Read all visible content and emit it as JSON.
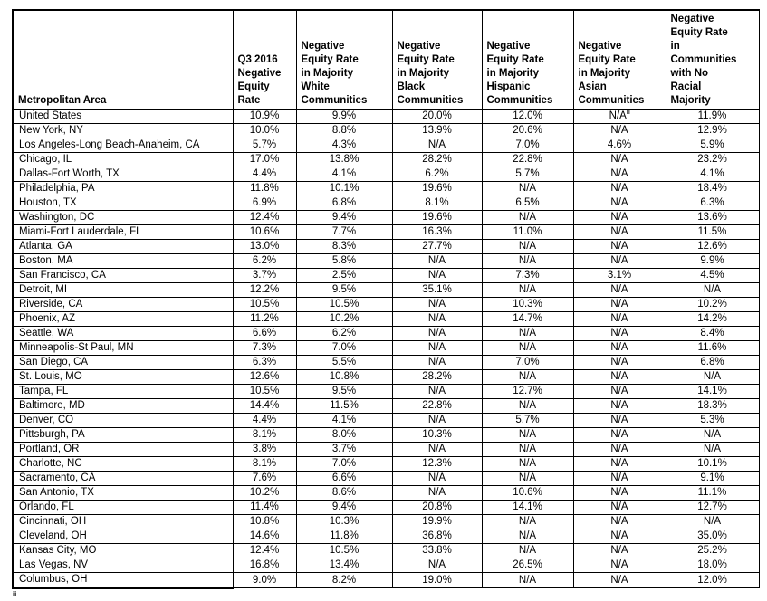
{
  "colors": {
    "background": "#ffffff",
    "text": "#000000",
    "border": "#000000"
  },
  "table": {
    "columns": [
      "Metropolitan Area",
      "Q3 2016\nNegative\nEquity\nRate",
      "Negative\nEquity Rate\nin Majority\nWhite\nCommunities",
      "Negative\nEquity Rate\nin Majority\nBlack\nCommunities",
      "Negative\nEquity Rate\nin Majority\nHispanic\nCommunities",
      "Negative\nEquity Rate\nin Majority\nAsian\nCommunities",
      "Negative\nEquity Rate\nin\nCommunities\nwith No\nRacial\nMajority"
    ],
    "rows": [
      [
        "United States",
        "10.9%",
        "9.9%",
        "20.0%",
        "12.0%",
        {
          "text": "N/A",
          "sup": "iii"
        },
        "11.9%"
      ],
      [
        "New York, NY",
        "10.0%",
        "8.8%",
        "13.9%",
        "20.6%",
        "N/A",
        "12.9%"
      ],
      [
        "Los Angeles-Long Beach-Anaheim, CA",
        "5.7%",
        "4.3%",
        "N/A",
        "7.0%",
        "4.6%",
        "5.9%"
      ],
      [
        "Chicago, IL",
        "17.0%",
        "13.8%",
        "28.2%",
        "22.8%",
        "N/A",
        "23.2%"
      ],
      [
        "Dallas-Fort Worth, TX",
        "4.4%",
        "4.1%",
        "6.2%",
        "5.7%",
        "N/A",
        "4.1%"
      ],
      [
        "Philadelphia, PA",
        "11.8%",
        "10.1%",
        "19.6%",
        "N/A",
        "N/A",
        "18.4%"
      ],
      [
        "Houston, TX",
        "6.9%",
        "6.8%",
        "8.1%",
        "6.5%",
        "N/A",
        "6.3%"
      ],
      [
        "Washington, DC",
        "12.4%",
        "9.4%",
        "19.6%",
        "N/A",
        "N/A",
        "13.6%"
      ],
      [
        "Miami-Fort Lauderdale, FL",
        "10.6%",
        "7.7%",
        "16.3%",
        "11.0%",
        "N/A",
        "11.5%"
      ],
      [
        "Atlanta, GA",
        "13.0%",
        "8.3%",
        "27.7%",
        "N/A",
        "N/A",
        "12.6%"
      ],
      [
        "Boston, MA",
        "6.2%",
        "5.8%",
        "N/A",
        "N/A",
        "N/A",
        "9.9%"
      ],
      [
        "San Francisco, CA",
        "3.7%",
        "2.5%",
        "N/A",
        "7.3%",
        "3.1%",
        "4.5%"
      ],
      [
        "Detroit, MI",
        "12.2%",
        "9.5%",
        "35.1%",
        "N/A",
        "N/A",
        "N/A"
      ],
      [
        "Riverside, CA",
        "10.5%",
        "10.5%",
        "N/A",
        "10.3%",
        "N/A",
        "10.2%"
      ],
      [
        "Phoenix, AZ",
        "11.2%",
        "10.2%",
        "N/A",
        "14.7%",
        "N/A",
        "14.2%"
      ],
      [
        "Seattle, WA",
        "6.6%",
        "6.2%",
        "N/A",
        "N/A",
        "N/A",
        "8.4%"
      ],
      [
        "Minneapolis-St Paul, MN",
        "7.3%",
        "7.0%",
        "N/A",
        "N/A",
        "N/A",
        "11.6%"
      ],
      [
        "San Diego, CA",
        "6.3%",
        "5.5%",
        "N/A",
        "7.0%",
        "N/A",
        "6.8%"
      ],
      [
        "St. Louis, MO",
        "12.6%",
        "10.8%",
        "28.2%",
        "N/A",
        "N/A",
        "N/A"
      ],
      [
        "Tampa, FL",
        "10.5%",
        "9.5%",
        "N/A",
        "12.7%",
        "N/A",
        "14.1%"
      ],
      [
        "Baltimore, MD",
        "14.4%",
        "11.5%",
        "22.8%",
        "N/A",
        "N/A",
        "18.3%"
      ],
      [
        "Denver, CO",
        "4.4%",
        "4.1%",
        "N/A",
        "5.7%",
        "N/A",
        "5.3%"
      ],
      [
        "Pittsburgh, PA",
        "8.1%",
        "8.0%",
        "10.3%",
        "N/A",
        "N/A",
        "N/A"
      ],
      [
        "Portland, OR",
        "3.8%",
        "3.7%",
        "N/A",
        "N/A",
        "N/A",
        "N/A"
      ],
      [
        "Charlotte, NC",
        "8.1%",
        "7.0%",
        "12.3%",
        "N/A",
        "N/A",
        "10.1%"
      ],
      [
        "Sacramento, CA",
        "7.6%",
        "6.6%",
        "N/A",
        "N/A",
        "N/A",
        "9.1%"
      ],
      [
        "San Antonio, TX",
        "10.2%",
        "8.6%",
        "N/A",
        "10.6%",
        "N/A",
        "11.1%"
      ],
      [
        "Orlando, FL",
        "11.4%",
        "9.4%",
        "20.8%",
        "14.1%",
        "N/A",
        "12.7%"
      ],
      [
        "Cincinnati, OH",
        "10.8%",
        "10.3%",
        "19.9%",
        "N/A",
        "N/A",
        "N/A"
      ],
      [
        "Cleveland, OH",
        "14.6%",
        "11.8%",
        "36.8%",
        "N/A",
        "N/A",
        "35.0%"
      ],
      [
        "Kansas City, MO",
        "12.4%",
        "10.5%",
        "33.8%",
        "N/A",
        "N/A",
        "25.2%"
      ],
      [
        "Las Vegas, NV",
        "16.8%",
        "13.4%",
        "N/A",
        "26.5%",
        "N/A",
        "18.0%"
      ],
      [
        "Columbus, OH",
        "9.0%",
        "8.2%",
        "19.0%",
        "N/A",
        "N/A",
        "12.0%"
      ]
    ]
  },
  "footnote": {
    "marker": "iii"
  }
}
